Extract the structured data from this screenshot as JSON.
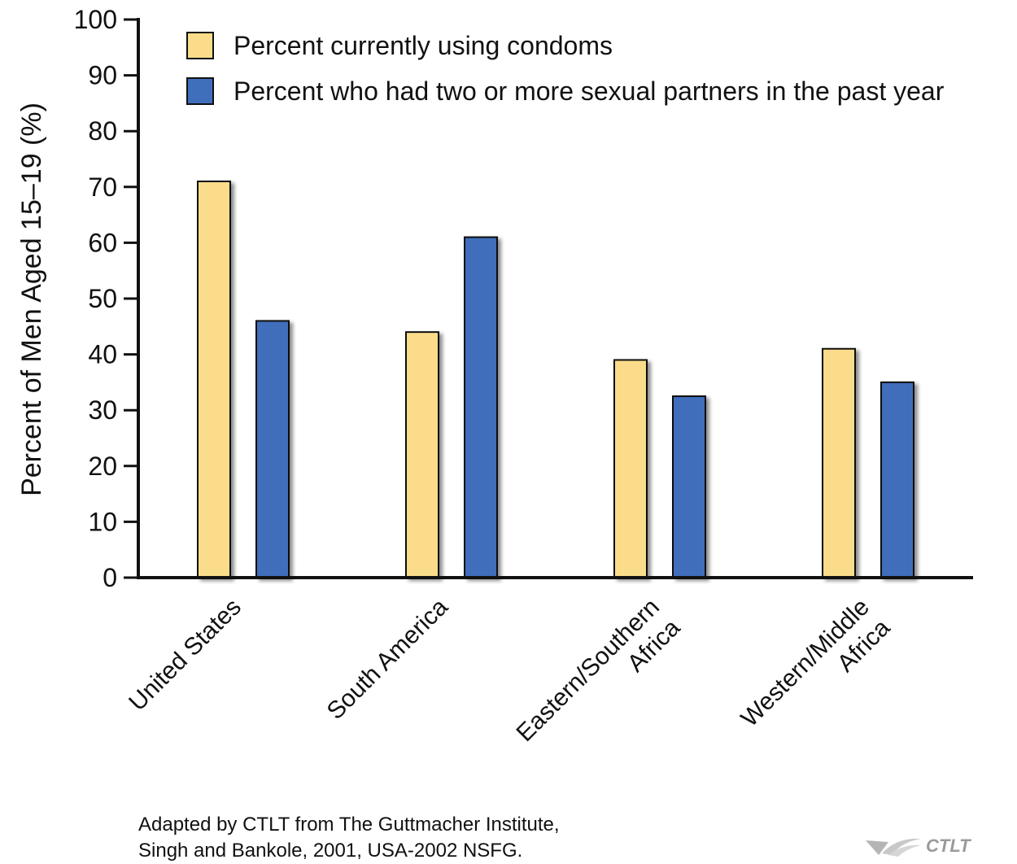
{
  "chart_data": {
    "type": "bar",
    "categories": [
      [
        "United States"
      ],
      [
        "South America"
      ],
      [
        "Eastern/Southern",
        "Africa"
      ],
      [
        "Western/Middle",
        "Africa"
      ]
    ],
    "series": [
      {
        "name": "Percent currently using condoms",
        "color": "#fbdc8a",
        "values": [
          71,
          44,
          39,
          41
        ]
      },
      {
        "name": "Percent who had two or more sexual partners in the past year",
        "color": "#3f6ebb",
        "values": [
          46,
          61,
          32.5,
          35
        ]
      }
    ],
    "ylabel": "Percent of Men Aged 15–19 (%)",
    "yticks": [
      "0",
      "10",
      "20",
      "30",
      "40",
      "50",
      "60",
      "70",
      "80",
      "90",
      "100"
    ],
    "ylim": [
      0,
      100
    ],
    "legend_position": "top",
    "grid": false
  },
  "source": {
    "line1": "Adapted by CTLT from The Guttmacher Institute,",
    "line2": "Singh and Bankole, 2001, USA-2002 NSFG."
  },
  "logo": {
    "text": "CTLT"
  }
}
